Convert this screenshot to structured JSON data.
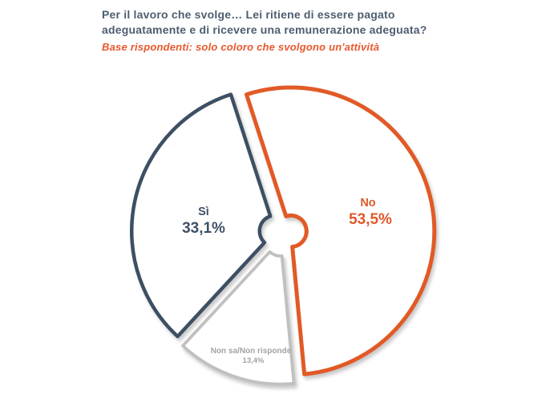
{
  "header": {
    "title_lines": [
      "Per il lavoro che svolge… Lei ritiene di essere pagato",
      "adeguatamente e di ricevere una remunerazione adeguata?"
    ],
    "subtitle": "Base rispondenti: solo coloro che svolgono un'attività",
    "title_color": "#4D5E70",
    "subtitle_color": "#E8582E"
  },
  "chart_data": {
    "type": "pie",
    "style": "exploded-outline-donut",
    "title": "Per il lavoro che svolge… Lei ritiene di essere pagato adeguatamente e di ricevere una remunerazione adeguata?",
    "subtitle": "Base rispondenti: solo coloro che svolgono un'attività",
    "start_angle_deg": -18,
    "direction": "clockwise",
    "legend_position": "none",
    "slices": [
      {
        "id": "no",
        "label": "No",
        "value": 53.5,
        "value_text": "53,5%",
        "color": "#E15A28",
        "label_color": "#E0592A"
      },
      {
        "id": "nonsa",
        "label": "Non sa/Non risponde",
        "value": 13.4,
        "value_text": "13,4%",
        "color": "#C1C0C0",
        "label_color": "#A3A3A3"
      },
      {
        "id": "si",
        "label": "Sì",
        "value": 33.1,
        "value_text": "33,1%",
        "color": "#3D4F63",
        "label_color": "#3E5166"
      }
    ]
  }
}
